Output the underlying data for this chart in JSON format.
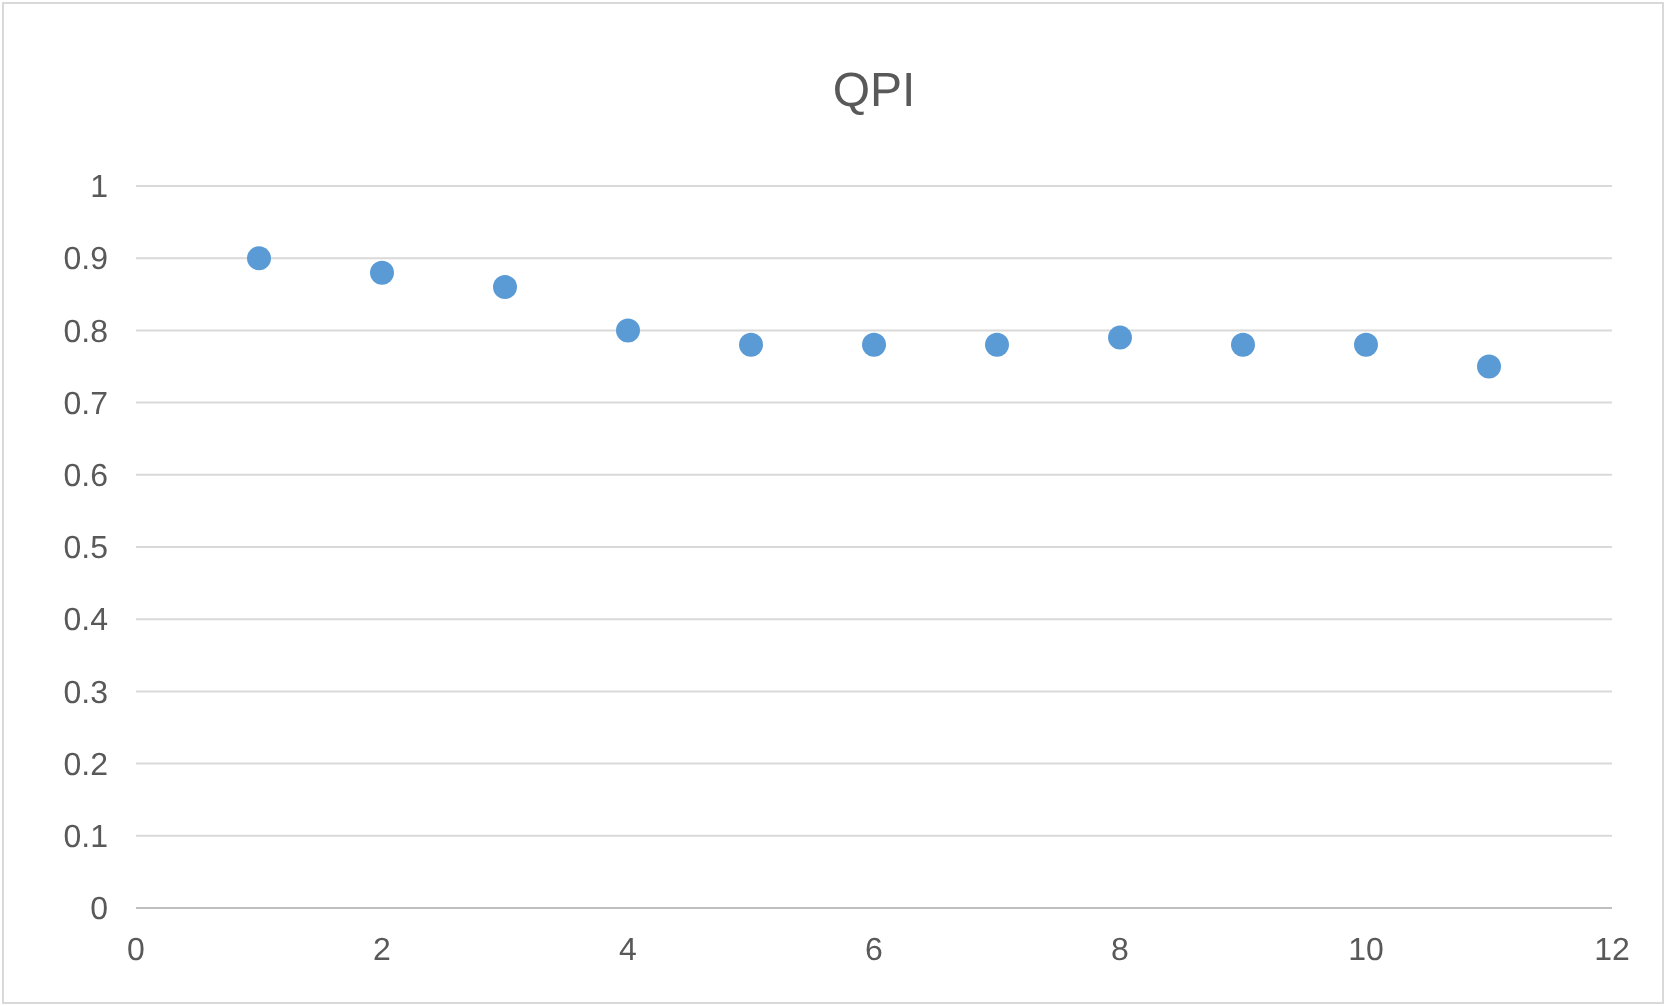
{
  "chart_data": {
    "type": "scatter",
    "title": "QPI",
    "x": [
      1,
      2,
      3,
      4,
      5,
      6,
      7,
      8,
      9,
      10,
      11
    ],
    "series": [
      {
        "color": "#5b9bd5",
        "values": [
          0.9,
          0.88,
          0.86,
          0.8,
          0.78,
          0.78,
          0.78,
          0.79,
          0.78,
          0.78,
          0.75
        ]
      }
    ],
    "xlim": [
      0,
      12
    ],
    "xticks": [
      0,
      2,
      4,
      6,
      8,
      10,
      12
    ],
    "ylim": [
      0,
      1
    ],
    "yticks": [
      0,
      0.1,
      0.2,
      0.3,
      0.4,
      0.5,
      0.6,
      0.7,
      0.8,
      0.9,
      1
    ],
    "grid": "y",
    "marker": "circle"
  }
}
